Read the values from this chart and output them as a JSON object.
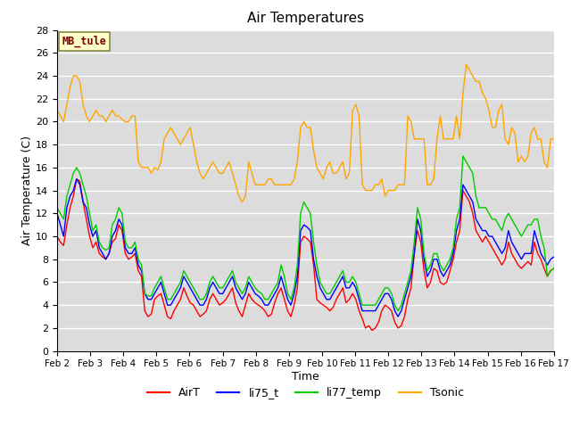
{
  "title": "Air Temperatures",
  "xlabel": "Time",
  "ylabel": "Air Temperature (C)",
  "annotation": "MB_tule",
  "ylim": [
    0,
    28
  ],
  "xlim": [
    0,
    15
  ],
  "xtick_labels": [
    "Feb 2",
    "Feb 3",
    "Feb 4",
    "Feb 5",
    "Feb 6",
    "Feb 7",
    "Feb 8",
    "Feb 9",
    "Feb 10",
    "Feb 11",
    "Feb 12",
    "Feb 13",
    "Feb 14",
    "Feb 15",
    "Feb 16",
    "Feb 17"
  ],
  "ytick_values": [
    0,
    2,
    4,
    6,
    8,
    10,
    12,
    14,
    16,
    18,
    20,
    22,
    24,
    26,
    28
  ],
  "colors": {
    "AirT": "#ff0000",
    "li75_t": "#0000ff",
    "li77_temp": "#00cc00",
    "Tsonic": "#ffa500"
  },
  "bg_color": "#dcdcdc",
  "annotation_bg": "#ffffcc",
  "annotation_text_color": "#800000",
  "AirT": [
    10.0,
    9.5,
    9.2,
    11.0,
    12.5,
    13.5,
    15.0,
    14.8,
    13.0,
    11.5,
    10.0,
    9.0,
    9.5,
    8.5,
    8.2,
    8.0,
    8.5,
    9.5,
    9.8,
    11.0,
    10.5,
    8.5,
    8.0,
    8.2,
    8.5,
    7.0,
    6.5,
    3.5,
    3.0,
    3.2,
    4.5,
    4.8,
    5.0,
    4.0,
    3.0,
    2.8,
    3.5,
    4.0,
    4.5,
    5.5,
    4.8,
    4.2,
    4.0,
    3.5,
    3.0,
    3.2,
    3.5,
    4.5,
    5.0,
    4.5,
    4.0,
    4.2,
    4.5,
    5.0,
    5.5,
    4.2,
    3.5,
    3.0,
    4.0,
    5.0,
    4.5,
    4.2,
    4.0,
    3.8,
    3.5,
    3.0,
    3.2,
    4.2,
    5.0,
    5.5,
    4.5,
    3.5,
    3.0,
    4.0,
    5.5,
    9.5,
    10.0,
    9.8,
    9.5,
    7.5,
    4.5,
    4.2,
    4.0,
    3.8,
    3.5,
    3.8,
    4.5,
    5.0,
    5.5,
    4.2,
    4.5,
    5.0,
    4.5,
    3.5,
    2.8,
    2.0,
    2.2,
    1.8,
    2.0,
    2.5,
    3.5,
    4.0,
    3.8,
    3.5,
    2.5,
    2.0,
    2.2,
    3.0,
    4.5,
    5.5,
    8.5,
    10.5,
    9.5,
    7.0,
    5.5,
    6.0,
    7.2,
    7.0,
    6.0,
    5.8,
    6.0,
    7.0,
    8.0,
    9.5,
    10.5,
    14.0,
    13.5,
    13.0,
    12.0,
    10.5,
    10.0,
    9.5,
    10.0,
    9.5,
    9.0,
    8.5,
    8.0,
    7.5,
    8.0,
    9.5,
    8.5,
    8.0,
    7.5,
    7.2,
    7.5,
    7.8,
    7.5,
    9.5,
    8.5,
    8.0,
    7.2,
    6.5,
    7.0,
    7.2
  ],
  "li75_t": [
    12.0,
    11.0,
    10.0,
    12.5,
    13.5,
    14.0,
    15.0,
    14.5,
    13.0,
    12.5,
    11.0,
    10.0,
    10.5,
    9.0,
    8.5,
    8.0,
    8.5,
    10.0,
    10.5,
    11.5,
    11.0,
    9.0,
    8.5,
    8.5,
    9.0,
    7.5,
    7.0,
    5.0,
    4.5,
    4.5,
    5.0,
    5.5,
    6.0,
    5.0,
    4.0,
    4.0,
    4.5,
    5.0,
    5.5,
    6.5,
    6.0,
    5.5,
    5.0,
    4.5,
    4.0,
    4.0,
    4.5,
    5.5,
    6.0,
    5.5,
    5.0,
    5.0,
    5.5,
    6.0,
    6.5,
    5.5,
    5.0,
    4.5,
    5.0,
    6.0,
    5.5,
    5.0,
    4.8,
    4.5,
    4.0,
    4.0,
    4.5,
    5.0,
    5.5,
    6.5,
    5.5,
    4.5,
    4.0,
    5.0,
    6.5,
    10.5,
    11.0,
    10.8,
    10.5,
    8.0,
    6.5,
    5.5,
    5.0,
    4.5,
    4.5,
    5.0,
    5.5,
    6.0,
    6.5,
    5.5,
    5.5,
    6.0,
    5.5,
    4.5,
    3.5,
    3.5,
    3.5,
    3.5,
    3.5,
    4.0,
    4.5,
    5.0,
    5.0,
    4.5,
    3.5,
    3.0,
    3.5,
    4.5,
    5.5,
    6.5,
    8.5,
    11.5,
    10.5,
    8.0,
    6.5,
    7.0,
    8.0,
    8.0,
    7.0,
    6.5,
    7.0,
    7.5,
    8.5,
    10.5,
    11.5,
    14.5,
    14.0,
    13.5,
    13.0,
    11.5,
    11.0,
    10.5,
    10.5,
    10.0,
    10.0,
    9.5,
    9.0,
    8.5,
    9.0,
    10.5,
    9.5,
    9.0,
    8.5,
    8.0,
    8.5,
    8.5,
    8.5,
    10.5,
    9.5,
    8.5,
    8.0,
    7.5,
    8.0,
    8.2
  ],
  "li77_temp": [
    12.5,
    12.0,
    11.5,
    13.5,
    14.5,
    15.5,
    16.0,
    15.5,
    14.5,
    13.5,
    12.0,
    10.5,
    11.0,
    9.5,
    9.0,
    8.8,
    9.0,
    11.0,
    11.5,
    12.5,
    12.0,
    9.5,
    9.0,
    9.0,
    9.5,
    8.0,
    7.5,
    5.0,
    4.8,
    4.8,
    5.5,
    6.0,
    6.5,
    5.5,
    4.5,
    4.5,
    5.0,
    5.5,
    6.0,
    7.0,
    6.5,
    6.0,
    5.5,
    5.0,
    4.5,
    4.5,
    5.0,
    6.0,
    6.5,
    6.0,
    5.5,
    5.5,
    6.0,
    6.5,
    7.0,
    6.0,
    5.5,
    5.0,
    5.5,
    6.5,
    6.0,
    5.5,
    5.2,
    5.0,
    4.5,
    4.5,
    5.0,
    5.5,
    6.0,
    7.5,
    6.5,
    5.0,
    4.5,
    5.5,
    7.5,
    12.0,
    13.0,
    12.5,
    12.0,
    9.5,
    7.5,
    6.0,
    5.5,
    5.0,
    5.0,
    5.5,
    6.0,
    6.5,
    7.0,
    6.0,
    6.0,
    6.5,
    6.0,
    5.0,
    4.0,
    4.0,
    4.0,
    4.0,
    4.0,
    4.5,
    5.0,
    5.5,
    5.5,
    5.0,
    4.0,
    3.5,
    4.0,
    5.0,
    6.0,
    7.0,
    9.5,
    12.5,
    11.5,
    8.5,
    7.0,
    7.5,
    8.5,
    8.5,
    7.5,
    7.0,
    7.5,
    8.0,
    9.0,
    11.5,
    12.5,
    17.0,
    16.5,
    16.0,
    15.5,
    13.5,
    12.5,
    12.5,
    12.5,
    12.0,
    11.5,
    11.5,
    11.0,
    10.5,
    11.5,
    12.0,
    11.5,
    11.0,
    10.5,
    10.0,
    10.5,
    11.0,
    11.0,
    11.5,
    11.5,
    10.0,
    9.0,
    6.5,
    7.0,
    7.2
  ],
  "Tsonic": [
    21.0,
    20.5,
    20.0,
    21.5,
    23.0,
    24.0,
    24.0,
    23.5,
    21.5,
    20.5,
    20.0,
    20.5,
    21.0,
    20.5,
    20.5,
    20.0,
    20.5,
    21.0,
    20.5,
    20.5,
    20.2,
    20.0,
    20.0,
    20.5,
    20.5,
    16.5,
    16.0,
    16.0,
    16.0,
    15.5,
    16.0,
    15.8,
    16.5,
    18.5,
    19.0,
    19.5,
    19.0,
    18.5,
    18.0,
    18.5,
    19.0,
    19.5,
    18.0,
    16.5,
    15.5,
    15.0,
    15.5,
    16.0,
    16.5,
    16.0,
    15.5,
    15.5,
    16.0,
    16.5,
    15.5,
    14.5,
    13.5,
    13.0,
    13.5,
    16.5,
    15.5,
    14.5,
    14.5,
    14.5,
    14.5,
    15.0,
    15.0,
    14.5,
    14.5,
    14.5,
    14.5,
    14.5,
    14.5,
    15.0,
    16.5,
    19.5,
    20.0,
    19.5,
    19.5,
    17.5,
    16.0,
    15.5,
    15.0,
    16.0,
    16.5,
    15.5,
    15.5,
    16.0,
    16.5,
    15.0,
    15.5,
    21.0,
    21.5,
    20.5,
    14.5,
    14.0,
    14.0,
    14.0,
    14.5,
    14.5,
    15.0,
    13.5,
    14.0,
    14.0,
    14.0,
    14.5,
    14.5,
    14.5,
    20.5,
    20.0,
    18.5,
    18.5,
    18.5,
    18.5,
    14.5,
    14.5,
    15.0,
    18.5,
    20.5,
    18.5,
    18.5,
    18.5,
    18.5,
    20.5,
    18.5,
    22.5,
    25.0,
    24.5,
    24.0,
    23.5,
    23.5,
    22.5,
    22.0,
    21.0,
    19.5,
    19.5,
    21.0,
    21.5,
    18.5,
    18.0,
    19.5,
    19.0,
    16.5,
    17.0,
    16.5,
    17.0,
    19.0,
    19.5,
    18.5,
    18.5,
    16.5,
    16.0,
    18.5,
    18.5
  ]
}
